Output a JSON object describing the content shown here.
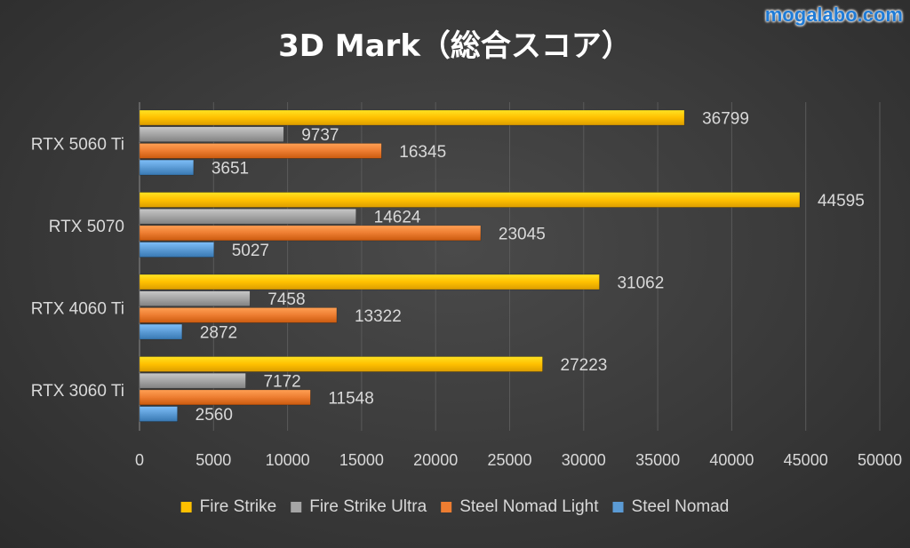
{
  "watermark": "mogalabo.com",
  "chart_data": {
    "type": "bar",
    "orientation": "horizontal",
    "title": "3D Mark（総合スコア）",
    "categories": [
      "RTX 5060 Ti",
      "RTX 5070",
      "RTX 4060 Ti",
      "RTX 3060 Ti"
    ],
    "series": [
      {
        "name": "Fire Strike",
        "color": "#ffc000",
        "values": [
          36799,
          44595,
          31062,
          27223
        ]
      },
      {
        "name": "Fire Strike Ultra",
        "color": "#a5a5a5",
        "values": [
          9737,
          14624,
          7458,
          7172
        ]
      },
      {
        "name": "Steel Nomad Light",
        "color": "#ed7d31",
        "values": [
          16345,
          23045,
          13322,
          11548
        ]
      },
      {
        "name": "Steel Nomad",
        "color": "#5b9bd5",
        "values": [
          3651,
          5027,
          2872,
          2560
        ]
      }
    ],
    "xlim": [
      0,
      50000
    ],
    "xticks": [
      "0",
      "5000",
      "10000",
      "15000",
      "20000",
      "25000",
      "30000",
      "35000",
      "40000",
      "45000",
      "50000"
    ],
    "xlabel": "",
    "ylabel": "",
    "grid": true,
    "legend_position": "bottom",
    "data_labels": true
  }
}
